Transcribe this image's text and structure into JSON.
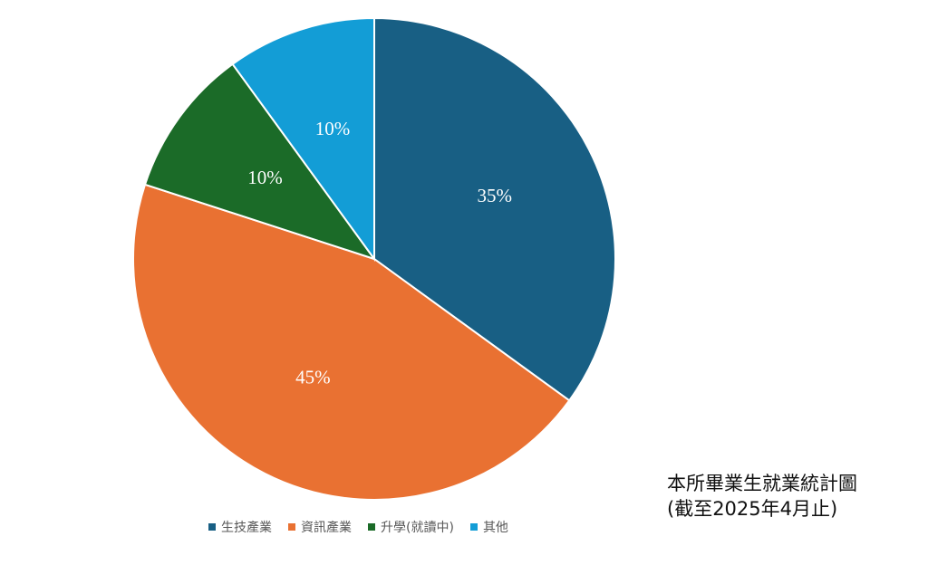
{
  "chart_data": {
    "type": "pie",
    "categories": [
      "生技產業",
      "資訊產業",
      "升學(就讀中)",
      "其他"
    ],
    "values": [
      35,
      45,
      10,
      10
    ],
    "labels": [
      "35%",
      "45%",
      "10%",
      "10%"
    ],
    "colors": [
      "#185F84",
      "#E97132",
      "#1B6B28",
      "#139DD6"
    ],
    "start_angle": "12 o'clock",
    "direction": "clockwise",
    "legend_position": "bottom"
  },
  "caption": {
    "line1": "本所畢業生就業統計圖",
    "line2": "(截至2025年4月止)"
  }
}
